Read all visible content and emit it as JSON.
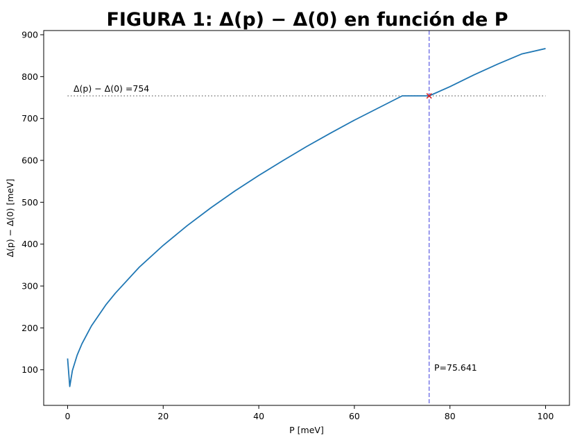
{
  "chart_data": {
    "type": "line",
    "title": "FIGURA 1: Δ(p) − Δ(0) en función de P",
    "xlabel": "P [meV]",
    "ylabel": "Δ(p) − Δ(0) [meV]",
    "xlim": [
      -5,
      105
    ],
    "ylim": [
      15,
      910
    ],
    "x_ticks": [
      0,
      20,
      40,
      60,
      80,
      100
    ],
    "y_ticks": [
      100,
      200,
      300,
      400,
      500,
      600,
      700,
      800,
      900
    ],
    "grid": false,
    "series": [
      {
        "color": "#1f77b4",
        "x": [
          0,
          0.45,
          1,
          2,
          3,
          5,
          8,
          10,
          15,
          20,
          25,
          30,
          35,
          40,
          45,
          50,
          55,
          60,
          65,
          70,
          75.641,
          80,
          85,
          90,
          95,
          100
        ],
        "y": [
          127,
          60,
          98,
          135,
          162,
          205,
          255,
          283,
          345,
          397,
          444,
          487,
          527,
          564,
          599,
          633,
          665,
          696,
          725,
          754,
          754,
          776,
          804,
          830,
          854,
          867
        ]
      }
    ],
    "reference_lines": {
      "horizontal": {
        "y": 754,
        "x_range": [
          0,
          100
        ],
        "color": "#808080",
        "style": "dotted"
      },
      "vertical": {
        "x": 75.641,
        "color": "#7878e8",
        "style": "dashed"
      }
    },
    "marker": {
      "x": 75.641,
      "y": 754,
      "symbol": "x",
      "color": "#d62728"
    },
    "annotations": {
      "delta_label": "Δ(p) − Δ(0) =754",
      "p_label": "P=75.641"
    }
  }
}
